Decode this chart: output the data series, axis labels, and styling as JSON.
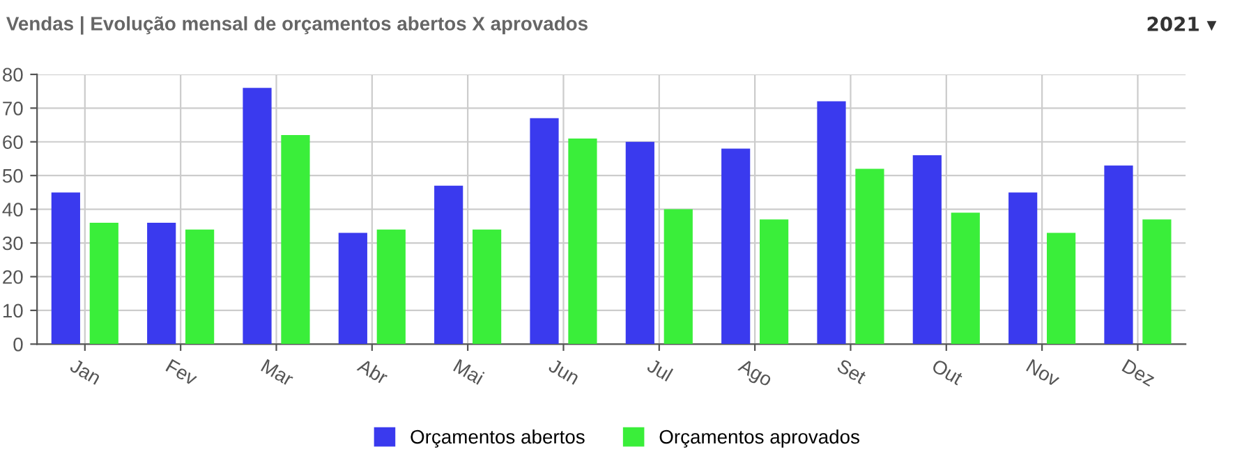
{
  "chart_data": {
    "type": "bar",
    "title": "Vendas | Evolução mensal de orçamentos abertos X aprovados",
    "annotations": [
      "2021 ▾"
    ],
    "categories": [
      "Jan",
      "Fev",
      "Mar",
      "Abr",
      "Mai",
      "Jun",
      "Jul",
      "Ago",
      "Set",
      "Out",
      "Nov",
      "Dez"
    ],
    "series": [
      {
        "name": "Orçamentos abertos",
        "color": "#3a3aee",
        "values": [
          45,
          36,
          76,
          33,
          47,
          67,
          60,
          58,
          72,
          56,
          45,
          53
        ]
      },
      {
        "name": "Orçamentos aprovados",
        "color": "#3aee3a",
        "values": [
          36,
          34,
          62,
          34,
          34,
          61,
          40,
          37,
          52,
          39,
          33,
          37
        ]
      }
    ],
    "ylim": [
      0,
      80
    ],
    "yticks": [
      0,
      10,
      20,
      30,
      40,
      50,
      60,
      70,
      80
    ],
    "grid": true,
    "legend": "bottom"
  }
}
